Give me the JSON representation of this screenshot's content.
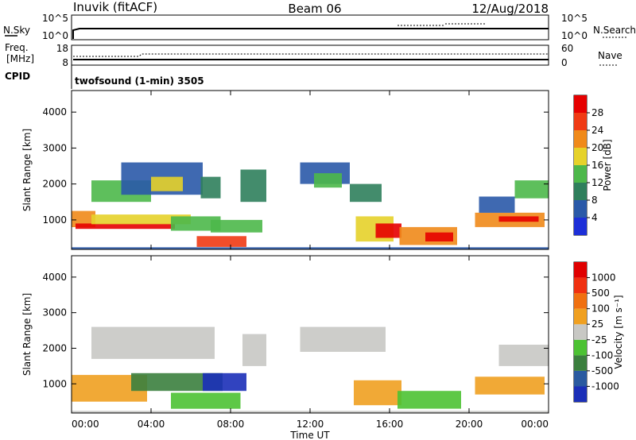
{
  "header": {
    "station": "Inuvik (fitACF)",
    "beam": "Beam 06",
    "date": "12/Aug/2018"
  },
  "top_panels": {
    "nsky_label": "N.Sky",
    "nsky_ticks": [
      "10^5",
      "10^0"
    ],
    "nsearch_label": "N.Search",
    "nsearch_ticks": [
      "10^5",
      "10^0"
    ],
    "freq_label": "Freq.",
    "freq_unit": "[MHz]",
    "freq_ticks": [
      "18",
      "8"
    ],
    "nave_label": "Nave",
    "nave_ticks": [
      "60",
      "0"
    ],
    "cpid_label": "CPID",
    "cpid_text": "twofsound (1-min) 3505"
  },
  "chart_data": [
    {
      "type": "heatmap",
      "name": "power-panel",
      "ylabel": "Slant Range [km]",
      "xlabel": "",
      "yticks": [
        "1000",
        "2000",
        "3000",
        "4000"
      ],
      "yticks_values": [
        1000,
        2000,
        3000,
        4000
      ],
      "ylim": [
        180,
        4600
      ],
      "xlim": [
        0,
        24
      ],
      "colorbar": {
        "label": "Power [dB]",
        "ticks": [
          "4",
          "8",
          "12",
          "16",
          "20",
          "24",
          "28"
        ],
        "colors": [
          "#1d2fd8",
          "#2a59a8",
          "#2f7f5c",
          "#4db84a",
          "#e6d22a",
          "#f08a1a",
          "#f03a14",
          "#e60000"
        ]
      },
      "bands": [
        {
          "t0": 0.0,
          "t1": 24.0,
          "r0": 190,
          "r1": 240,
          "level": 1
        },
        {
          "t0": 0.0,
          "t1": 1.2,
          "r0": 800,
          "r1": 1250,
          "level": 5
        },
        {
          "t0": 0.2,
          "t1": 5.2,
          "r0": 750,
          "r1": 900,
          "level": 7
        },
        {
          "t0": 1.0,
          "t1": 6.0,
          "r0": 880,
          "r1": 1150,
          "level": 4
        },
        {
          "t0": 5.0,
          "t1": 7.5,
          "r0": 700,
          "r1": 1100,
          "level": 3
        },
        {
          "t0": 6.3,
          "t1": 8.8,
          "r0": 250,
          "r1": 550,
          "level": 6
        },
        {
          "t0": 7.0,
          "t1": 9.6,
          "r0": 650,
          "r1": 1000,
          "level": 3
        },
        {
          "t0": 1.0,
          "t1": 4.0,
          "r0": 1500,
          "r1": 2100,
          "level": 3
        },
        {
          "t0": 2.5,
          "t1": 6.6,
          "r0": 1700,
          "r1": 2600,
          "level": 1
        },
        {
          "t0": 4.0,
          "t1": 5.6,
          "r0": 1800,
          "r1": 2200,
          "level": 4
        },
        {
          "t0": 6.5,
          "t1": 7.5,
          "r0": 1600,
          "r1": 2200,
          "level": 2
        },
        {
          "t0": 8.5,
          "t1": 9.8,
          "r0": 1500,
          "r1": 2400,
          "level": 2
        },
        {
          "t0": 11.5,
          "t1": 14.0,
          "r0": 2000,
          "r1": 2600,
          "level": 1
        },
        {
          "t0": 12.2,
          "t1": 13.6,
          "r0": 1900,
          "r1": 2300,
          "level": 3
        },
        {
          "t0": 14.0,
          "t1": 15.6,
          "r0": 1500,
          "r1": 2000,
          "level": 2
        },
        {
          "t0": 14.3,
          "t1": 16.2,
          "r0": 400,
          "r1": 1100,
          "level": 4
        },
        {
          "t0": 15.3,
          "t1": 16.6,
          "r0": 500,
          "r1": 900,
          "level": 7
        },
        {
          "t0": 16.5,
          "t1": 19.4,
          "r0": 300,
          "r1": 800,
          "level": 5
        },
        {
          "t0": 17.8,
          "t1": 19.2,
          "r0": 400,
          "r1": 650,
          "level": 7
        },
        {
          "t0": 20.3,
          "t1": 23.8,
          "r0": 800,
          "r1": 1200,
          "level": 5
        },
        {
          "t0": 21.5,
          "t1": 23.5,
          "r0": 950,
          "r1": 1100,
          "level": 7
        },
        {
          "t0": 20.5,
          "t1": 22.3,
          "r0": 1200,
          "r1": 1650,
          "level": 1
        },
        {
          "t0": 22.3,
          "t1": 24.0,
          "r0": 1600,
          "r1": 2100,
          "level": 3
        }
      ]
    },
    {
      "type": "heatmap",
      "name": "velocity-panel",
      "ylabel": "Slant Range [km]",
      "xlabel": "Time UT",
      "yticks": [
        "1000",
        "2000",
        "3000",
        "4000"
      ],
      "yticks_values": [
        1000,
        2000,
        3000,
        4000
      ],
      "ylim": [
        180,
        4600
      ],
      "xlim": [
        0,
        24
      ],
      "xticks": [
        "00:00",
        "04:00",
        "08:00",
        "12:00",
        "16:00",
        "20:00",
        "00:00"
      ],
      "xticks_values": [
        0,
        4,
        8,
        12,
        16,
        20,
        24
      ],
      "colorbar": {
        "label": "Velocity [m s⁻¹]",
        "ticks": [
          "1000",
          "500",
          "100",
          "25",
          "-25",
          "-100",
          "-500",
          "-1000"
        ],
        "colors": [
          "#1b2fb8",
          "#2a5aa0",
          "#3b7f3e",
          "#4cc233",
          "#c8c8c4",
          "#f0a020",
          "#f07010",
          "#f03010",
          "#e00000"
        ]
      },
      "bands": [
        {
          "t0": 0.0,
          "t1": 24.0,
          "r0": 190,
          "r1": 240,
          "level": 4
        },
        {
          "t0": 0.0,
          "t1": 3.8,
          "r0": 500,
          "r1": 1250,
          "level": 5
        },
        {
          "t0": 3.0,
          "t1": 7.6,
          "r0": 800,
          "r1": 1300,
          "level": 2
        },
        {
          "t0": 6.6,
          "t1": 8.8,
          "r0": 800,
          "r1": 1300,
          "level": 0
        },
        {
          "t0": 5.0,
          "t1": 8.5,
          "r0": 300,
          "r1": 750,
          "level": 3
        },
        {
          "t0": 1.0,
          "t1": 7.2,
          "r0": 1700,
          "r1": 2600,
          "level": 4
        },
        {
          "t0": 8.6,
          "t1": 9.8,
          "r0": 1500,
          "r1": 2400,
          "level": 4
        },
        {
          "t0": 11.5,
          "t1": 15.8,
          "r0": 1900,
          "r1": 2600,
          "level": 4
        },
        {
          "t0": 14.2,
          "t1": 16.6,
          "r0": 400,
          "r1": 1100,
          "level": 5
        },
        {
          "t0": 16.4,
          "t1": 19.6,
          "r0": 300,
          "r1": 800,
          "level": 3
        },
        {
          "t0": 20.3,
          "t1": 23.8,
          "r0": 700,
          "r1": 1200,
          "level": 5
        },
        {
          "t0": 21.5,
          "t1": 24.0,
          "r0": 1500,
          "r1": 2100,
          "level": 4
        }
      ]
    }
  ]
}
